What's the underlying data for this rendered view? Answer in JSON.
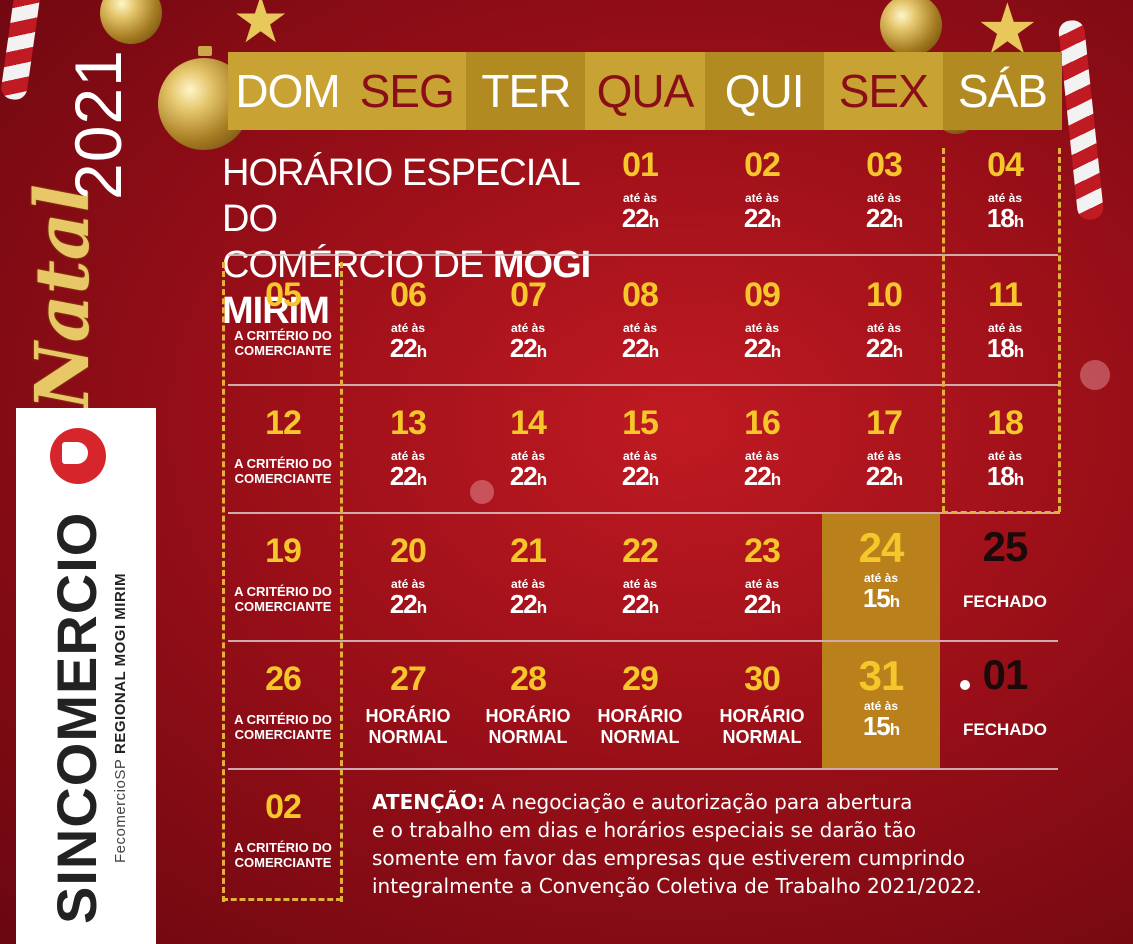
{
  "branding": {
    "year": "2021",
    "word": "Natal",
    "logo_name": "SINCOMERCIO",
    "logo_sub_prefix": "FecomercioSP",
    "logo_sub_region": "REGIONAL MOGI MIRIM"
  },
  "header": {
    "days": [
      "DOM",
      "SEG",
      "TER",
      "QUA",
      "QUI",
      "SEX",
      "SÁB"
    ]
  },
  "title": {
    "line1": "HORÁRIO ESPECIAL DO",
    "line2_prefix": "COMÉRCIO DE ",
    "line2_bold": "MOGI MIRIM"
  },
  "labels": {
    "ate_as": "até às",
    "criterio_1": "A CRITÉRIO DO",
    "criterio_2": "COMERCIANTE",
    "normal_1": "HORÁRIO",
    "normal_2": "NORMAL",
    "fechado": "FECHADO"
  },
  "calendar": {
    "week1": [
      {
        "day": "01",
        "hours": "22",
        "unit": "h"
      },
      {
        "day": "02",
        "hours": "22",
        "unit": "h"
      },
      {
        "day": "03",
        "hours": "22",
        "unit": "h"
      },
      {
        "day": "04",
        "hours": "18",
        "unit": "h"
      }
    ],
    "week2": [
      {
        "day": "05"
      },
      {
        "day": "06",
        "hours": "22",
        "unit": "h"
      },
      {
        "day": "07",
        "hours": "22",
        "unit": "h"
      },
      {
        "day": "08",
        "hours": "22",
        "unit": "h"
      },
      {
        "day": "09",
        "hours": "22",
        "unit": "h"
      },
      {
        "day": "10",
        "hours": "22",
        "unit": "h"
      },
      {
        "day": "11",
        "hours": "18",
        "unit": "h"
      }
    ],
    "week3": [
      {
        "day": "12"
      },
      {
        "day": "13",
        "hours": "22",
        "unit": "h"
      },
      {
        "day": "14",
        "hours": "22",
        "unit": "h"
      },
      {
        "day": "15",
        "hours": "22",
        "unit": "h"
      },
      {
        "day": "16",
        "hours": "22",
        "unit": "h"
      },
      {
        "day": "17",
        "hours": "22",
        "unit": "h"
      },
      {
        "day": "18",
        "hours": "18",
        "unit": "h"
      }
    ],
    "week4": [
      {
        "day": "19"
      },
      {
        "day": "20",
        "hours": "22",
        "unit": "h"
      },
      {
        "day": "21",
        "hours": "22",
        "unit": "h"
      },
      {
        "day": "22",
        "hours": "22",
        "unit": "h"
      },
      {
        "day": "23",
        "hours": "22",
        "unit": "h"
      },
      {
        "day": "24",
        "hours": "15",
        "unit": "h"
      },
      {
        "day": "25"
      }
    ],
    "week5": [
      {
        "day": "26"
      },
      {
        "day": "27"
      },
      {
        "day": "28"
      },
      {
        "day": "29"
      },
      {
        "day": "30"
      },
      {
        "day": "31",
        "hours": "15",
        "unit": "h"
      },
      {
        "day": "01"
      }
    ],
    "week6": [
      {
        "day": "02"
      }
    ]
  },
  "note": {
    "bold": "ATENÇÃO:",
    "line1": " A negociação e autorização para abertura",
    "line2": "e o trabalho em dias e horários especiais se darão tão",
    "line3": "somente em favor das empresas que estiverem cumprindo",
    "line4": "integralmente a Convenção Coletiva de Trabalho 2021/2022."
  },
  "colors": {
    "background": "#a1111a",
    "gold": "#c9a234",
    "highlight": "#b9801c",
    "number": "#f5c72a"
  }
}
